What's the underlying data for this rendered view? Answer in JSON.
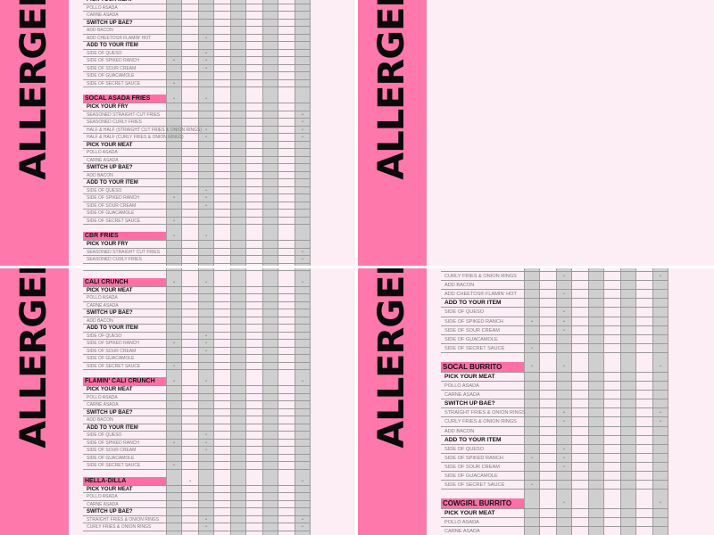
{
  "sidebar_title": "ALLERGENS",
  "colors": {
    "sidebar": "#ff78ac",
    "header_bar": "#ff6fa6",
    "background": "#fdeef5",
    "stripe": "#cfcfcf"
  },
  "allergen_column_count": 9,
  "panels": {
    "top_left": [
      {
        "t": "s",
        "label": "PICK YOUR MEAT",
        "marks": []
      },
      {
        "t": "i",
        "label": "POLLO ASADA",
        "marks": []
      },
      {
        "t": "i",
        "label": "CARNE ASADA",
        "marks": []
      },
      {
        "t": "s",
        "label": "SWITCH UP BAE?",
        "marks": []
      },
      {
        "t": "i",
        "label": "ADD BACON",
        "marks": []
      },
      {
        "t": "i",
        "label": "ADD CHEETOS® FLAMIN' HOT",
        "marks": [
          2
        ]
      },
      {
        "t": "s",
        "label": "ADD TO YOUR ITEM",
        "marks": []
      },
      {
        "t": "i",
        "label": "SIDE OF QUESO",
        "marks": [
          2
        ]
      },
      {
        "t": "i",
        "label": "SIDE OF SPIKED RANCH",
        "marks": [
          0,
          2
        ]
      },
      {
        "t": "i",
        "label": "SIDE OF SOUR CREAM",
        "marks": [
          2
        ]
      },
      {
        "t": "i",
        "label": "SIDE OF GUACAMOLE",
        "marks": []
      },
      {
        "t": "i",
        "label": "SIDE OF SECRET SAUCE",
        "marks": [
          0
        ]
      },
      {
        "t": "g",
        "label": "",
        "marks": []
      },
      {
        "t": "h",
        "label": "SOCAL ASADA FRIES",
        "marks": [
          0,
          2
        ]
      },
      {
        "t": "s",
        "label": "PICK YOUR FRY",
        "marks": []
      },
      {
        "t": "i",
        "label": "SEASONED STRAIGHT-CUT FRIES",
        "marks": [
          8
        ]
      },
      {
        "t": "i",
        "label": "SEASONED CURLY FRIES",
        "marks": [
          8
        ]
      },
      {
        "t": "i",
        "label": "HALF & HALF (STRAIGHT CUT FRIES & ONION RINGS)",
        "marks": [
          2,
          8
        ]
      },
      {
        "t": "i",
        "label": "HALF & HALF (CURLY FRIES & ONION RINGS)",
        "marks": [
          2,
          8
        ]
      },
      {
        "t": "s",
        "label": "PICK YOUR MEAT",
        "marks": []
      },
      {
        "t": "i",
        "label": "POLLO ASADA",
        "marks": []
      },
      {
        "t": "i",
        "label": "CARNE ASADA",
        "marks": []
      },
      {
        "t": "s",
        "label": "SWITCH UP BAE?",
        "marks": []
      },
      {
        "t": "i",
        "label": "ADD BACON",
        "marks": []
      },
      {
        "t": "s",
        "label": "ADD TO YOUR ITEM",
        "marks": []
      },
      {
        "t": "i",
        "label": "SIDE OF QUESO",
        "marks": [
          2
        ]
      },
      {
        "t": "i",
        "label": "SIDE OF SPIKED RANCH",
        "marks": [
          0,
          2
        ]
      },
      {
        "t": "i",
        "label": "SIDE OF SOUR CREAM",
        "marks": [
          2
        ]
      },
      {
        "t": "i",
        "label": "SIDE OF GUACAMOLE",
        "marks": []
      },
      {
        "t": "i",
        "label": "SIDE OF SECRET SAUCE",
        "marks": [
          0
        ]
      },
      {
        "t": "g",
        "label": "",
        "marks": []
      },
      {
        "t": "h",
        "label": "CBR FRIES",
        "marks": [
          0,
          2
        ]
      },
      {
        "t": "s",
        "label": "PICK YOUR FRY",
        "marks": []
      },
      {
        "t": "i",
        "label": "SEASONED STRAIGHT CUT FRIES",
        "marks": [
          8
        ]
      },
      {
        "t": "i",
        "label": "SEASONED CURLY FRIES",
        "marks": [
          8
        ]
      }
    ],
    "top_right": [],
    "bottom_left": [
      {
        "t": "i",
        "label": "SIDE OF SECRET SAUCE",
        "marks": []
      },
      {
        "t": "g",
        "label": "",
        "marks": []
      },
      {
        "t": "h",
        "label": "CALI CRUNCH",
        "marks": [
          0,
          2,
          8
        ]
      },
      {
        "t": "s",
        "label": "PICK YOUR MEAT",
        "marks": []
      },
      {
        "t": "i",
        "label": "POLLO ASADA",
        "marks": []
      },
      {
        "t": "i",
        "label": "CARNE ASADA",
        "marks": []
      },
      {
        "t": "s",
        "label": "SWITCH UP BAE?",
        "marks": []
      },
      {
        "t": "i",
        "label": "ADD BACON",
        "marks": []
      },
      {
        "t": "s",
        "label": "ADD TO YOUR ITEM",
        "marks": []
      },
      {
        "t": "i",
        "label": "SIDE OF QUESO",
        "marks": [
          2
        ]
      },
      {
        "t": "i",
        "label": "SIDE OF SPIKED RANCH",
        "marks": [
          0,
          2
        ]
      },
      {
        "t": "i",
        "label": "SIDE OF SOUR CREAM",
        "marks": [
          2
        ]
      },
      {
        "t": "i",
        "label": "SIDE OF GUACAMOLE",
        "marks": []
      },
      {
        "t": "i",
        "label": "SIDE OF SECRET SAUCE",
        "marks": [
          0
        ]
      },
      {
        "t": "g",
        "label": "",
        "marks": []
      },
      {
        "t": "h",
        "label": "FLAMIN' CALI CRUNCH",
        "marks": [
          0,
          2,
          8
        ]
      },
      {
        "t": "s",
        "label": "PICK YOUR MEAT",
        "marks": []
      },
      {
        "t": "i",
        "label": "POLLO ASADA",
        "marks": []
      },
      {
        "t": "i",
        "label": "CARNE ASADA",
        "marks": []
      },
      {
        "t": "s",
        "label": "SWITCH UP BAE?",
        "marks": []
      },
      {
        "t": "i",
        "label": "ADD BACON",
        "marks": []
      },
      {
        "t": "s",
        "label": "ADD TO YOUR ITEM",
        "marks": []
      },
      {
        "t": "i",
        "label": "SIDE OF QUESO",
        "marks": [
          2
        ]
      },
      {
        "t": "i",
        "label": "SIDE OF SPIKED RANCH",
        "marks": [
          0,
          2
        ]
      },
      {
        "t": "i",
        "label": "SIDE OF SOUR CREAM",
        "marks": [
          2
        ]
      },
      {
        "t": "i",
        "label": "SIDE OF GUACAMOLE",
        "marks": []
      },
      {
        "t": "i",
        "label": "SIDE OF SECRET SAUCE",
        "marks": [
          0
        ]
      },
      {
        "t": "g",
        "label": "",
        "marks": []
      },
      {
        "t": "h",
        "label": "HELLA-DILLA",
        "marks": [
          1,
          8
        ]
      },
      {
        "t": "s",
        "label": "PICK YOUR MEAT",
        "marks": []
      },
      {
        "t": "i",
        "label": "POLLO ASADA",
        "marks": []
      },
      {
        "t": "i",
        "label": "CARNE ASADA",
        "marks": []
      },
      {
        "t": "s",
        "label": "SWITCH UP BAE?",
        "marks": []
      },
      {
        "t": "i",
        "label": "STRAIGHT FRIES & ONION RINGS",
        "marks": [
          2,
          8
        ]
      },
      {
        "t": "i",
        "label": "CURLY FRIES & ONION RINGS",
        "marks": [
          2,
          8
        ]
      }
    ],
    "bottom_right": [
      {
        "t": "i",
        "label": "STRAIGHT FRIES & ONION RINGS",
        "marks": []
      },
      {
        "t": "i",
        "label": "CURLY FRIES & ONION RINGS",
        "marks": [
          2,
          8
        ]
      },
      {
        "t": "i",
        "label": "ADD BACON",
        "marks": []
      },
      {
        "t": "i",
        "label": "ADD CHEETOS® FLAMIN' HOT",
        "marks": [
          2
        ]
      },
      {
        "t": "s",
        "label": "ADD TO YOUR ITEM",
        "marks": []
      },
      {
        "t": "i",
        "label": "SIDE OF QUESO",
        "marks": [
          2
        ]
      },
      {
        "t": "i",
        "label": "SIDE OF SPIKED RANCH",
        "marks": [
          0,
          2
        ]
      },
      {
        "t": "i",
        "label": "SIDE OF SOUR CREAM",
        "marks": [
          2
        ]
      },
      {
        "t": "i",
        "label": "SIDE OF GUACAMOLE",
        "marks": []
      },
      {
        "t": "i",
        "label": "SIDE OF SECRET SAUCE",
        "marks": [
          0
        ]
      },
      {
        "t": "g",
        "label": "",
        "marks": []
      },
      {
        "t": "h",
        "label": "SOCAL BURRITO",
        "marks": [
          0,
          2,
          8
        ]
      },
      {
        "t": "s",
        "label": "PICK YOUR MEAT",
        "marks": []
      },
      {
        "t": "i",
        "label": "POLLO ASADA",
        "marks": []
      },
      {
        "t": "i",
        "label": "CARNE ASADA",
        "marks": []
      },
      {
        "t": "s",
        "label": "SWITCH UP BAE?",
        "marks": []
      },
      {
        "t": "i",
        "label": "STRAIGHT FRIES & ONION RINGS",
        "marks": [
          2,
          8
        ]
      },
      {
        "t": "i",
        "label": "CURLY FRIES & ONION RINGS",
        "marks": [
          2,
          8
        ]
      },
      {
        "t": "i",
        "label": "ADD BACON",
        "marks": []
      },
      {
        "t": "s",
        "label": "ADD TO YOUR ITEM",
        "marks": []
      },
      {
        "t": "i",
        "label": "SIDE OF QUESO",
        "marks": [
          2
        ]
      },
      {
        "t": "i",
        "label": "SIDE OF SPIKED RANCH",
        "marks": [
          0,
          2
        ]
      },
      {
        "t": "i",
        "label": "SIDE OF SOUR CREAM",
        "marks": [
          2
        ]
      },
      {
        "t": "i",
        "label": "SIDE OF GUACAMOLE",
        "marks": []
      },
      {
        "t": "i",
        "label": "SIDE OF SECRET SAUCE",
        "marks": [
          0
        ]
      },
      {
        "t": "g",
        "label": "",
        "marks": []
      },
      {
        "t": "h",
        "label": "COWGIRL BURRITO",
        "marks": [
          2,
          8
        ]
      },
      {
        "t": "s",
        "label": "PICK YOUR MEAT",
        "marks": []
      },
      {
        "t": "i",
        "label": "POLLO ASADA",
        "marks": []
      },
      {
        "t": "i",
        "label": "CARNE ASADA",
        "marks": []
      }
    ]
  }
}
